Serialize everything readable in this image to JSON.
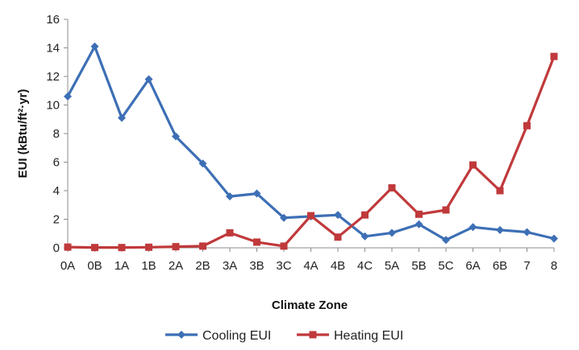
{
  "chart_data": {
    "type": "line",
    "categories": [
      "0A",
      "0B",
      "1A",
      "1B",
      "2A",
      "2B",
      "3A",
      "3B",
      "3C",
      "4A",
      "4B",
      "4C",
      "5A",
      "5B",
      "5C",
      "6A",
      "6B",
      "7",
      "8"
    ],
    "series": [
      {
        "name": "Cooling EUI",
        "color": "#3d6fb5",
        "marker": "diamond",
        "values": [
          10.6,
          14.1,
          9.1,
          11.8,
          7.8,
          5.9,
          3.6,
          3.8,
          2.1,
          2.2,
          2.3,
          0.8,
          1.05,
          1.65,
          0.55,
          1.45,
          1.25,
          1.1,
          0.65
        ]
      },
      {
        "name": "Heating EUI",
        "color": "#c0393b",
        "marker": "square",
        "values": [
          0.05,
          0.02,
          0.02,
          0.04,
          0.08,
          0.12,
          1.05,
          0.4,
          0.12,
          2.25,
          0.75,
          2.3,
          4.2,
          2.35,
          2.65,
          5.8,
          4.0,
          8.55,
          13.4
        ]
      }
    ],
    "ylim": [
      0,
      16
    ],
    "yticks": [
      0,
      2,
      4,
      6,
      8,
      10,
      12,
      14,
      16
    ],
    "ylabel": "EUI (kBtu/ft²·yr)",
    "xlabel": "Climate Zone",
    "grid": false,
    "legend_position": "bottom"
  }
}
